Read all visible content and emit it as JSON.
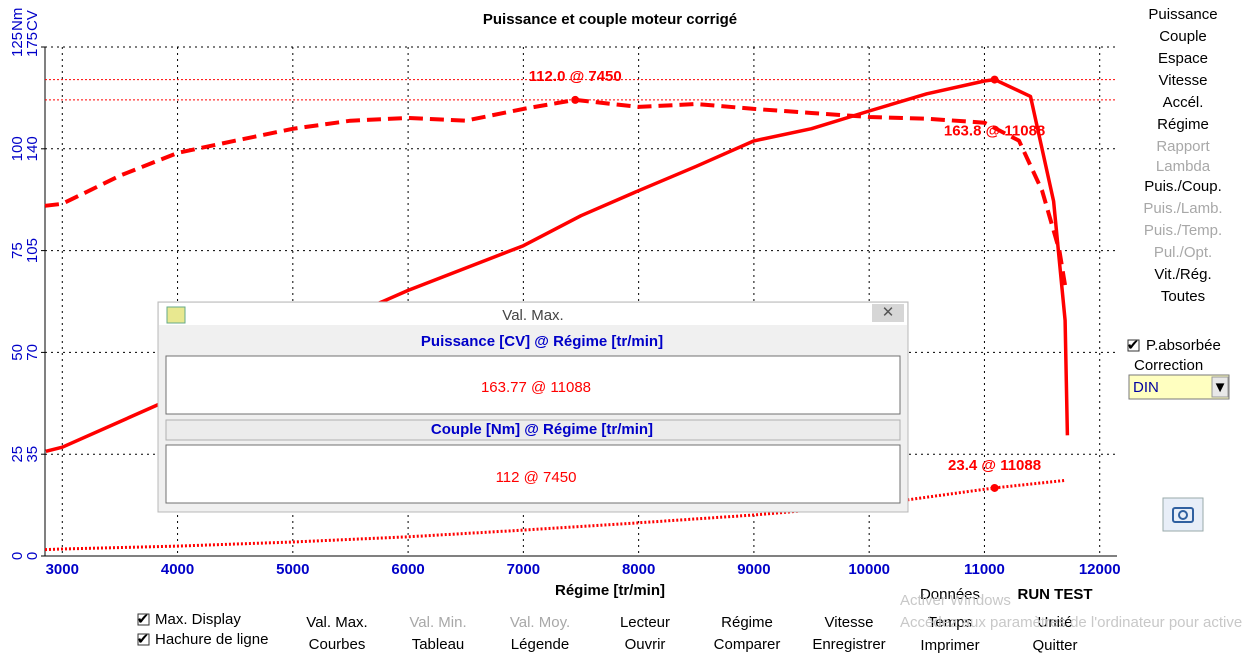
{
  "chart_data": {
    "type": "line",
    "title": "Puissance et couple moteur corrigé",
    "x_label": "Régime [tr/min]",
    "y_label": "CV",
    "y2_label": "Nm",
    "xlim": [
      2850,
      12150
    ],
    "xticks": [
      3000,
      4000,
      5000,
      6000,
      7000,
      8000,
      9000,
      10000,
      11000,
      12000
    ],
    "ylim": [
      0,
      175
    ],
    "yticks": [
      0,
      35,
      70,
      105,
      140,
      175
    ],
    "y2lim": [
      0,
      125
    ],
    "y2ticks": [
      0,
      25,
      50,
      75,
      100,
      125
    ],
    "grid": true,
    "series": [
      {
        "color": "#ff0000",
        "style": "solid",
        "axis": "y",
        "x": [
          2858,
          3000,
          4000,
          5000,
          6000,
          7000,
          7500,
          8000,
          8500,
          9000,
          9500,
          10000,
          10500,
          11000,
          11088,
          11400,
          11600,
          11700,
          11720
        ],
        "values": [
          36,
          37.4,
          55,
          74,
          91.3,
          106.7,
          117,
          125.6,
          134,
          142.7,
          146.9,
          153,
          158.9,
          163.3,
          163.8,
          158,
          122,
          81,
          41.5
        ]
      },
      {
        "color": "#ff0000",
        "style": "dashed",
        "axis": "y2",
        "x": [
          2850,
          3000,
          3500,
          4000,
          4500,
          5000,
          5500,
          6000,
          6500,
          7000,
          7450,
          8000,
          8500,
          9000,
          9500,
          10000,
          10500,
          11000,
          11300,
          11500,
          11650,
          11700
        ],
        "values": [
          86,
          86.5,
          93.4,
          99,
          102,
          104.9,
          106.9,
          107.6,
          106.9,
          109.8,
          112,
          110.3,
          111,
          109.8,
          108.8,
          107.8,
          107.4,
          106.4,
          102,
          89.7,
          75,
          66.4
        ]
      },
      {
        "color": "#ff0000",
        "style": "dotted",
        "axis": "y",
        "x": [
          2850,
          3000,
          4000,
          5000,
          6000,
          7000,
          8000,
          9000,
          10000,
          11088,
          11700
        ],
        "values": [
          2.2,
          2.4,
          3.4,
          4.8,
          6.6,
          8.9,
          11.4,
          14.1,
          17.5,
          23.4,
          26
        ]
      }
    ],
    "annotations": [
      {
        "text": "112.0 @ 7450",
        "x": 7450,
        "y": 112.0,
        "axis": "y2"
      },
      {
        "text": "163.8 @ 11088",
        "x": 11088,
        "y": 163.8,
        "axis": "y"
      },
      {
        "text": "23.4 @ 11088",
        "x": 11088,
        "y": 23.4,
        "axis": "y"
      }
    ]
  },
  "dialog": {
    "title": "Val. Max.",
    "power_header": "Puissance  [CV] @ Régime [tr/min]",
    "power_value": "163.77 @ 11088",
    "torque_header": "Couple  [Nm] @ Régime [tr/min]",
    "torque_value": "112 @ 7450"
  },
  "menu": [
    {
      "label": "Puissance",
      "enabled": true
    },
    {
      "label": "Couple",
      "enabled": true
    },
    {
      "label": "Espace",
      "enabled": true
    },
    {
      "label": "Vitesse",
      "enabled": true
    },
    {
      "label": "Accél.",
      "enabled": true
    },
    {
      "label": "Régime",
      "enabled": true
    },
    {
      "label": "Rapport",
      "enabled": false
    },
    {
      "label": "Lambda",
      "enabled": false
    },
    {
      "label": "Puis./Coup.",
      "enabled": true
    },
    {
      "label": "Puis./Lamb.",
      "enabled": false
    },
    {
      "label": "Puis./Temp.",
      "enabled": false
    },
    {
      "label": "Pul./Opt.",
      "enabled": false
    },
    {
      "label": "Vit./Rég.",
      "enabled": true
    },
    {
      "label": "Toutes",
      "enabled": true
    }
  ],
  "absorbed_checkbox": "P.absorbée",
  "correction_label": "Correction",
  "correction_value": "DIN",
  "checkboxes": [
    "Max. Display",
    "Hachure de ligne"
  ],
  "buttons": [
    [
      {
        "label": "Val. Max.",
        "enabled": true
      },
      {
        "label": "Courbes",
        "enabled": true
      }
    ],
    [
      {
        "label": "Val. Min.",
        "enabled": false
      },
      {
        "label": "Tableau",
        "enabled": true
      }
    ],
    [
      {
        "label": "Val. Moy.",
        "enabled": false
      },
      {
        "label": "Légende",
        "enabled": true
      }
    ],
    [
      {
        "label": "Lecteur",
        "enabled": true
      },
      {
        "label": "Ouvrir",
        "enabled": true
      }
    ],
    [
      {
        "label": "Régime",
        "enabled": true
      },
      {
        "label": "Comparer",
        "enabled": true
      }
    ],
    [
      {
        "label": "Vitesse",
        "enabled": true
      },
      {
        "label": "Enregistrer",
        "enabled": true
      }
    ],
    [
      {
        "label": "Données",
        "enabled": true
      },
      {
        "label": "Temps",
        "enabled": true
      },
      {
        "label": "Imprimer",
        "enabled": true
      }
    ],
    [
      {
        "label": "RUN TEST",
        "enabled": true
      },
      {
        "label": "Unité",
        "enabled": true
      },
      {
        "label": "Quitter",
        "enabled": true
      }
    ]
  ],
  "watermark": {
    "title": "Activer Windows",
    "text": "Accédez aux paramètres de l'ordinateur pour activer Windows."
  }
}
